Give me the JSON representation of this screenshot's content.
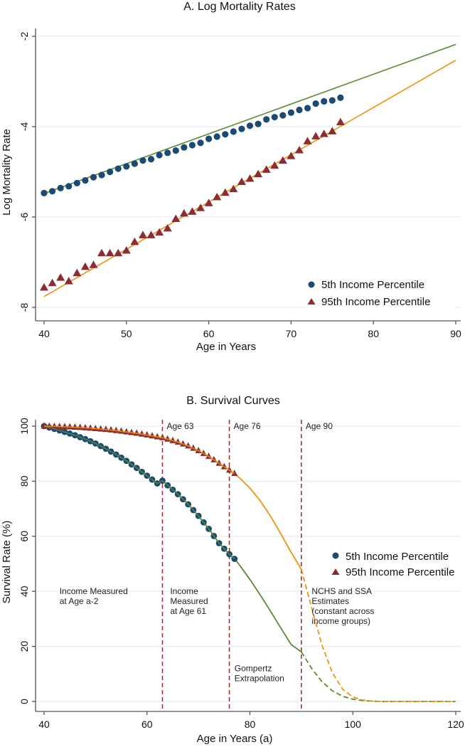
{
  "chart_data": [
    {
      "type": "scatter",
      "title": "A. Log Mortality Rates",
      "xlabel": "Age in Years",
      "ylabel": "Log Mortality Rate",
      "xlim": [
        40,
        90
      ],
      "ylim": [
        -8,
        -2
      ],
      "xticks": [
        40,
        50,
        60,
        70,
        80,
        90
      ],
      "yticks": [
        -2,
        -4,
        -6,
        -8
      ],
      "grid": true,
      "legend_position": "bottom-right",
      "colors": {
        "p5_marker": "#1b4a72",
        "p95_marker": "#8c2d33",
        "p5_line": "#5a8a32",
        "p95_line": "#f0900f"
      },
      "series": [
        {
          "name": "5th Income Percentile",
          "marker": "circle",
          "x": [
            40,
            41,
            42,
            43,
            44,
            45,
            46,
            47,
            48,
            49,
            50,
            51,
            52,
            53,
            54,
            55,
            56,
            57,
            58,
            59,
            60,
            61,
            62,
            63,
            64,
            65,
            66,
            67,
            68,
            69,
            70,
            71,
            72,
            73,
            74,
            75,
            76
          ],
          "y": [
            -5.47,
            -5.43,
            -5.36,
            -5.32,
            -5.25,
            -5.19,
            -5.12,
            -5.07,
            -5.0,
            -4.93,
            -4.88,
            -4.82,
            -4.75,
            -4.72,
            -4.63,
            -4.58,
            -4.53,
            -4.46,
            -4.41,
            -4.36,
            -4.27,
            -4.22,
            -4.17,
            -4.11,
            -4.05,
            -3.98,
            -3.94,
            -3.84,
            -3.79,
            -3.75,
            -3.69,
            -3.63,
            -3.59,
            -3.49,
            -3.44,
            -3.42,
            -3.36
          ],
          "fit": {
            "x": [
              40,
              90
            ],
            "y": [
              -5.48,
              -2.18
            ]
          }
        },
        {
          "name": "95th Income Percentile",
          "marker": "triangle",
          "x": [
            40,
            41,
            42,
            43,
            44,
            45,
            46,
            47,
            48,
            49,
            50,
            51,
            52,
            53,
            54,
            55,
            56,
            57,
            58,
            59,
            60,
            61,
            62,
            63,
            64,
            65,
            66,
            67,
            68,
            69,
            70,
            71,
            72,
            73,
            74,
            75,
            76
          ],
          "y": [
            -7.56,
            -7.46,
            -7.34,
            -7.42,
            -7.24,
            -7.1,
            -7.06,
            -6.8,
            -6.8,
            -6.8,
            -6.74,
            -6.55,
            -6.4,
            -6.4,
            -6.34,
            -6.25,
            -6.04,
            -5.92,
            -5.88,
            -5.8,
            -5.69,
            -5.56,
            -5.46,
            -5.38,
            -5.22,
            -5.15,
            -5.05,
            -4.95,
            -4.86,
            -4.75,
            -4.65,
            -4.52,
            -4.32,
            -4.21,
            -4.16,
            -4.1,
            -3.9
          ],
          "fit": {
            "x": [
              40,
              90
            ],
            "y": [
              -7.76,
              -2.53
            ]
          }
        }
      ]
    },
    {
      "type": "line",
      "title": "B. Survival Curves",
      "xlabel": "Age in Years (a)",
      "ylabel": "Survival Rate (%)",
      "xlim": [
        40,
        120
      ],
      "ylim": [
        0,
        100
      ],
      "xticks": [
        40,
        60,
        80,
        100,
        120
      ],
      "yticks": [
        0,
        20,
        40,
        60,
        80,
        100
      ],
      "grid": true,
      "legend_position": "middle-right",
      "vlines": [
        {
          "x": 63,
          "label": "Age 63"
        },
        {
          "x": 76,
          "label": "Age 76"
        },
        {
          "x": 90,
          "label": "Age 90"
        }
      ],
      "annotations": [
        {
          "x": 43,
          "y": 39,
          "lines": [
            "Income Measured",
            "at Age a-2"
          ]
        },
        {
          "x": 64.5,
          "y": 39,
          "lines": [
            "Income",
            "Measured",
            "at Age 61"
          ]
        },
        {
          "x": 77,
          "y": 11,
          "lines": [
            "Gompertz",
            "Extrapolation"
          ]
        },
        {
          "x": 92,
          "y": 39,
          "lines": [
            "NCHS and SSA",
            "Estimates",
            "(constant across",
            "income groups)"
          ]
        }
      ],
      "series": [
        {
          "name": "5th Income Percentile",
          "marker": "circle",
          "observed_x_range": [
            40,
            77
          ],
          "curve": {
            "x": [
              40,
              42,
              44,
              46,
              48,
              50,
              52,
              54,
              56,
              58,
              60,
              62,
              63,
              64,
              66,
              68,
              70,
              72,
              74,
              76,
              77,
              78,
              80,
              82,
              84,
              86,
              88,
              90,
              92,
              94,
              96,
              98,
              100,
              102,
              104,
              106,
              110,
              120
            ],
            "y": [
              100,
              99.0,
              97.9,
              96.7,
              95.3,
              93.7,
              91.8,
              89.7,
              87.4,
              84.8,
              82.0,
              79.2,
              80.2,
              78.5,
              75.3,
              71.6,
              67.4,
              62.7,
              57.5,
              53.5,
              51.8,
              49.5,
              44.3,
              38.7,
              32.8,
              26.7,
              20.7,
              18.0,
              12.0,
              7.2,
              3.9,
              1.9,
              0.8,
              0.3,
              0.1,
              0.0,
              0.0,
              0.0
            ]
          },
          "extrapolated_dashed_from": 90
        },
        {
          "name": "95th Income Percentile",
          "marker": "triangle",
          "observed_x_range": [
            40,
            77
          ],
          "curve": {
            "x": [
              40,
              42,
              44,
              46,
              48,
              50,
              52,
              54,
              56,
              58,
              60,
              62,
              63,
              64,
              66,
              68,
              70,
              72,
              74,
              76,
              77,
              78,
              80,
              82,
              84,
              86,
              88,
              90,
              92,
              94,
              96,
              98,
              100,
              102,
              104,
              106,
              110,
              120
            ],
            "y": [
              100,
              99.9,
              99.8,
              99.6,
              99.4,
              99.1,
              98.8,
              98.4,
              97.9,
              97.4,
              96.8,
              96.1,
              95.8,
              95.3,
              94.2,
              92.8,
              91.1,
              89.0,
              86.5,
              84.0,
              82.8,
              81.2,
              77.5,
              72.9,
              67.3,
              60.9,
              54.2,
              48.0,
              34.0,
              20.5,
              10.5,
              4.5,
              1.6,
              0.5,
              0.1,
              0.0,
              0.0,
              0.0
            ]
          },
          "extrapolated_dashed_from": 90
        }
      ]
    }
  ]
}
